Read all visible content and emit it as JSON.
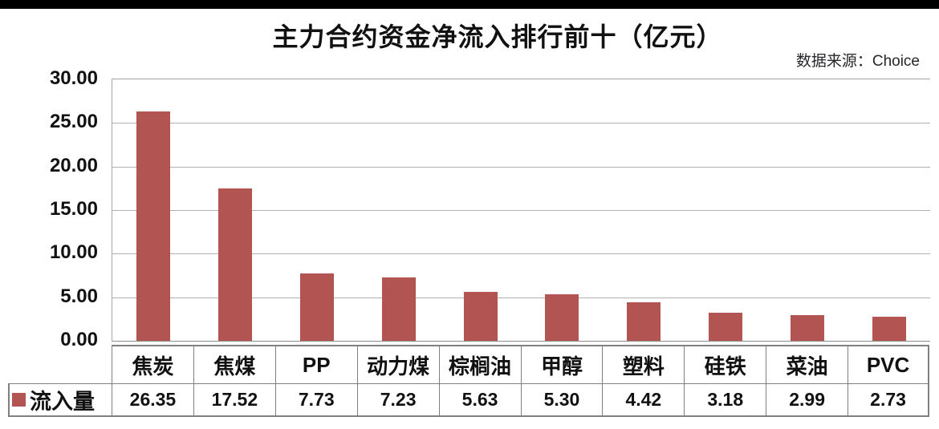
{
  "header": {
    "source_label": "数据来源：Choice"
  },
  "chart_data": {
    "type": "bar",
    "title": "主力合约资金净流入排行前十（亿元）",
    "categories": [
      "焦炭",
      "焦煤",
      "PP",
      "动力煤",
      "棕榈油",
      "甲醇",
      "塑料",
      "硅铁",
      "菜油",
      "PVC"
    ],
    "series": [
      {
        "name": "流入量",
        "values": [
          26.35,
          17.52,
          7.73,
          7.23,
          5.63,
          5.3,
          4.42,
          3.18,
          2.99,
          2.73
        ]
      }
    ],
    "value_labels": [
      "26.35",
      "17.52",
      "7.73",
      "7.23",
      "5.63",
      "5.30",
      "4.42",
      "3.18",
      "2.99",
      "2.73"
    ],
    "xlabel": "",
    "ylabel": "",
    "ylim": [
      0,
      30
    ],
    "ytick_step": 5,
    "ytick_labels": [
      "30.00",
      "25.00",
      "20.00",
      "15.00",
      "10.00",
      "5.00",
      "0.00"
    ],
    "grid": true,
    "legend_position": "data-table-left",
    "data_table_shown": true,
    "colors": {
      "bar": "#b25552",
      "gridline": "#b0b0b0",
      "table_border": "#808080",
      "title_text": "#111111",
      "source_text": "#26262b",
      "letterbox": "#000000"
    }
  }
}
